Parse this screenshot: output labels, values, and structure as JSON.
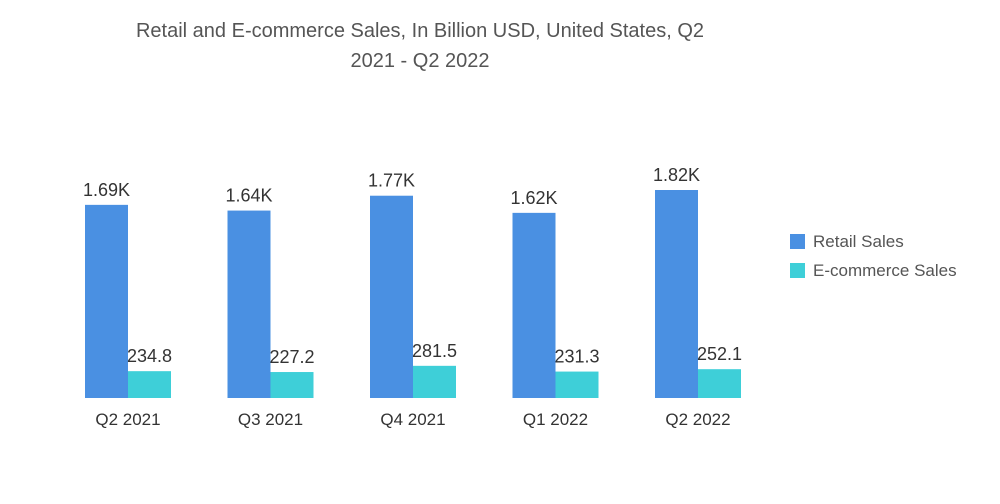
{
  "chart_data": {
    "type": "bar",
    "title_line1": "Retail and E-commerce Sales, In Billion USD, United States, Q2",
    "title_line2": "2021 - Q2 2022",
    "categories": [
      "Q2 2021",
      "Q3 2021",
      "Q4 2021",
      "Q1 2022",
      "Q2 2022"
    ],
    "series": [
      {
        "name": "Retail Sales",
        "color": "#4a90e2",
        "values": [
          1690,
          1640,
          1770,
          1620,
          1820
        ],
        "labels": [
          "1.69K",
          "1.64K",
          "1.77K",
          "1.62K",
          "1.82K"
        ]
      },
      {
        "name": "E-commerce Sales",
        "color": "#3ecfd8",
        "values": [
          234.8,
          227.2,
          281.5,
          231.3,
          252.1
        ],
        "labels": [
          "234.8",
          "227.2",
          "281.5",
          "231.3",
          "252.1"
        ]
      }
    ],
    "ylim": [
      0,
      1820
    ],
    "grid": false,
    "legend_position": "right"
  }
}
